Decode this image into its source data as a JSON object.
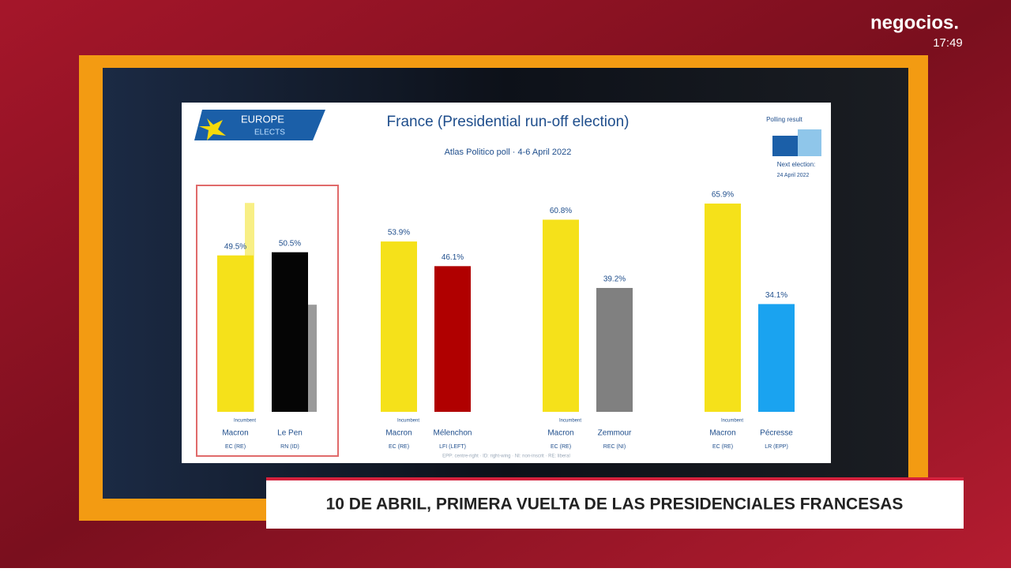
{
  "broadcast": {
    "brand": "negocios.",
    "time": "17:49",
    "ticker": "10 DE ABRIL, PRIMERA VUELTA DE LAS PRESIDENCIALES FRANCESAS"
  },
  "chart_data": {
    "type": "bar",
    "logo_top": "EUROPE",
    "logo_bottom": "ELECTS",
    "title": "France (Presidential run-off election)",
    "subtitle": "Atlas Politico poll · 4-6 April 2022",
    "legend_label": "Polling result",
    "next_election": "Next election:",
    "next_election_date": "24 April 2022",
    "incumbent_label": "Incumbent",
    "categories": [
      "Macron",
      "Le Pen",
      "Macron",
      "Mélenchon",
      "Macron",
      "Zemmour",
      "Macron",
      "Pécresse"
    ],
    "parties": [
      "EC (RE)",
      "RN (ID)",
      "EC (RE)",
      "LFI (LEFT)",
      "EC (RE)",
      "REC (NI)",
      "EC (RE)",
      "LR (EPP)"
    ],
    "values": [
      49.5,
      50.5,
      53.9,
      46.1,
      60.8,
      39.2,
      65.9,
      34.1
    ],
    "value_labels": [
      "49.5%",
      "50.5%",
      "53.9%",
      "46.1%",
      "60.8%",
      "39.2%",
      "65.9%",
      "34.1%"
    ],
    "colors": [
      "#f5e11a",
      "#050505",
      "#f5e11a",
      "#b00000",
      "#f5e11a",
      "#808080",
      "#f5e11a",
      "#1aa3f0"
    ],
    "previous_values": [
      66.1,
      33.9
    ],
    "previous_colors": [
      "#f8ef85",
      "#9a9a9a"
    ],
    "footnote": "EPP: centre-right · ID: right-wing · NI: non-inscrit · RE: liberal",
    "ylim": [
      0,
      70
    ]
  }
}
